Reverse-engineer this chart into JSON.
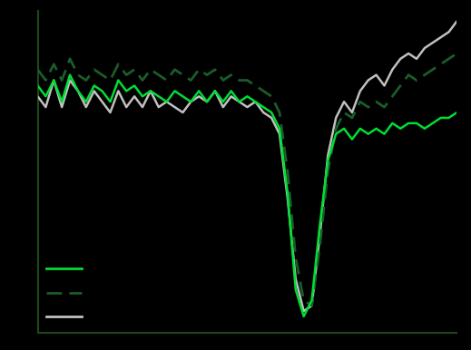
{
  "background_color": "#000000",
  "plot_bg_color": "#000000",
  "line_color_green": "#00dd33",
  "line_color_dark_green_dashed": "#1a5c2a",
  "line_color_gray": "#c0c0c0",
  "axis_color": "#1a4a1a",
  "xlim": [
    0,
    52
  ],
  "ylim": [
    -22,
    8
  ],
  "n_points": 53,
  "green_solid": [
    1.0,
    0.0,
    1.5,
    -0.5,
    2.0,
    0.5,
    -0.5,
    1.0,
    0.5,
    -0.5,
    1.5,
    0.5,
    1.0,
    0.0,
    0.5,
    0.0,
    -0.5,
    0.5,
    0.0,
    -0.5,
    0.5,
    -0.5,
    0.5,
    -0.5,
    0.5,
    -0.5,
    0.0,
    -0.5,
    -1.0,
    -1.5,
    -3.0,
    -9.0,
    -18.0,
    -20.5,
    -19.0,
    -12.0,
    -6.0,
    -3.5,
    -3.0,
    -4.0,
    -3.0,
    -3.5,
    -3.0,
    -3.5,
    -2.5,
    -3.0,
    -2.5,
    -2.5,
    -3.0,
    -2.5,
    -2.0,
    -2.0,
    -1.5
  ],
  "dashed_line": [
    2.5,
    1.5,
    3.0,
    1.5,
    3.5,
    2.0,
    1.5,
    2.5,
    2.0,
    1.5,
    3.0,
    2.0,
    2.5,
    1.5,
    2.5,
    2.0,
    1.5,
    2.5,
    2.0,
    1.5,
    2.5,
    2.0,
    2.5,
    1.5,
    2.0,
    1.5,
    1.5,
    1.0,
    0.5,
    0.0,
    -1.5,
    -7.0,
    -15.0,
    -19.0,
    -19.5,
    -14.0,
    -7.0,
    -3.0,
    -1.5,
    -2.0,
    -0.5,
    -1.0,
    -0.5,
    -1.0,
    0.0,
    1.0,
    2.0,
    1.5,
    2.0,
    2.5,
    3.0,
    3.5,
    4.0
  ],
  "gray_line": [
    0.0,
    -1.0,
    1.5,
    -1.0,
    1.5,
    0.5,
    -1.0,
    0.5,
    -0.5,
    -1.5,
    0.5,
    -1.0,
    0.0,
    -1.0,
    0.5,
    -1.0,
    -0.5,
    -1.0,
    -1.5,
    -0.5,
    0.0,
    -0.5,
    0.5,
    -1.0,
    0.0,
    -0.5,
    -1.0,
    -0.5,
    -1.5,
    -2.0,
    -3.5,
    -9.5,
    -17.0,
    -20.0,
    -19.5,
    -13.0,
    -5.5,
    -2.0,
    -0.5,
    -1.5,
    0.5,
    1.5,
    2.0,
    1.0,
    2.5,
    3.5,
    4.0,
    3.5,
    4.5,
    5.0,
    5.5,
    6.0,
    7.0
  ]
}
